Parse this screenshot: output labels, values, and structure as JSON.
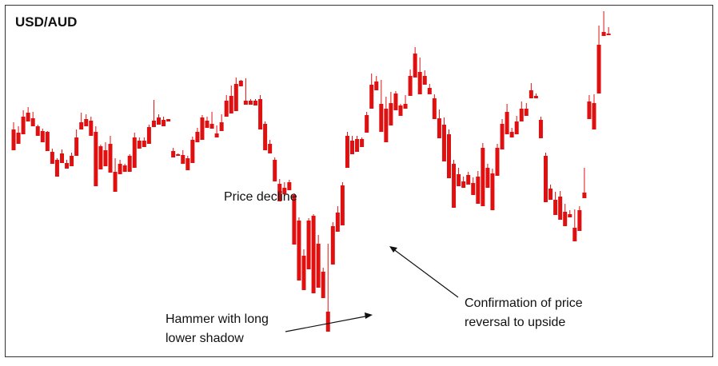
{
  "chart_data": {
    "type": "candlestick",
    "title": "USD/AUD",
    "xlabel": "",
    "ylabel": "",
    "grid": false,
    "colors": {
      "up": "#2e7d12",
      "down": "#e01010",
      "text": "#111111",
      "border": "#333333"
    },
    "ylim": [
      0,
      453
    ],
    "candles": [
      [
        162,
        153,
        180,
        188
      ],
      [
        166,
        158,
        177,
        180
      ],
      [
        146,
        138,
        157,
        168
      ],
      [
        141,
        134,
        150,
        152
      ],
      [
        148,
        140,
        157,
        158
      ],
      [
        158,
        156,
        168,
        170
      ],
      [
        164,
        161,
        172,
        178
      ],
      [
        165,
        164,
        185,
        189
      ],
      [
        190,
        186,
        200,
        205
      ],
      [
        200,
        198,
        219,
        221
      ],
      [
        192,
        187,
        200,
        204
      ],
      [
        204,
        200,
        205,
        211
      ],
      [
        195,
        191,
        205,
        208
      ],
      [
        172,
        162,
        195,
        195
      ],
      [
        153,
        141,
        160,
        162
      ],
      [
        149,
        143,
        153,
        158
      ],
      [
        151,
        146,
        167,
        170
      ],
      [
        165,
        158,
        200,
        233
      ],
      [
        183,
        181,
        202,
        212
      ],
      [
        188,
        178,
        205,
        208
      ],
      [
        180,
        170,
        190,
        216
      ],
      [
        215,
        198,
        230,
        240
      ],
      [
        205,
        200,
        215,
        218
      ],
      [
        207,
        205,
        212,
        215
      ],
      [
        195,
        193,
        212,
        215
      ],
      [
        172,
        166,
        200,
        210
      ],
      [
        176,
        172,
        182,
        186
      ],
      [
        176,
        172,
        180,
        184
      ],
      [
        159,
        156,
        178,
        180
      ],
      [
        151,
        125,
        157,
        159
      ],
      [
        147,
        143,
        152,
        156
      ],
      [
        150,
        146,
        155,
        158
      ],
      [
        149,
        149,
        151,
        152
      ],
      [
        189,
        185,
        193,
        197
      ],
      [
        193,
        192,
        195,
        195
      ],
      [
        194,
        188,
        202,
        205
      ],
      [
        198,
        195,
        210,
        213
      ],
      [
        175,
        171,
        201,
        204
      ],
      [
        165,
        160,
        177,
        178
      ],
      [
        147,
        144,
        172,
        175
      ],
      [
        151,
        146,
        158,
        160
      ],
      [
        155,
        140,
        158,
        161
      ],
      [
        167,
        157,
        170,
        172
      ],
      [
        153,
        143,
        158,
        164
      ],
      [
        126,
        119,
        143,
        146
      ],
      [
        120,
        107,
        137,
        142
      ],
      [
        105,
        97,
        136,
        139
      ],
      [
        101,
        100,
        104,
        108
      ],
      [
        126,
        98,
        128,
        131
      ],
      [
        126,
        124,
        129,
        131
      ],
      [
        126,
        124,
        129,
        132
      ],
      [
        124,
        119,
        159,
        162
      ],
      [
        155,
        152,
        185,
        188
      ],
      [
        180,
        175,
        188,
        192
      ],
      [
        200,
        197,
        225,
        227
      ],
      [
        230,
        224,
        250,
        252
      ],
      [
        235,
        228,
        240,
        243
      ],
      [
        228,
        225,
        236,
        238
      ],
      [
        244,
        242,
        304,
        306
      ],
      [
        276,
        272,
        347,
        351
      ],
      [
        320,
        312,
        355,
        363
      ],
      [
        276,
        273,
        333,
        337
      ],
      [
        270,
        268,
        363,
        367
      ],
      [
        305,
        294,
        355,
        360
      ],
      [
        340,
        335,
        363,
        373
      ],
      [
        390,
        305,
        412,
        415
      ],
      [
        283,
        278,
        327,
        331
      ],
      [
        266,
        258,
        288,
        290
      ],
      [
        232,
        228,
        278,
        282
      ],
      [
        170,
        165,
        208,
        210
      ],
      [
        176,
        170,
        190,
        193
      ],
      [
        174,
        170,
        188,
        190
      ],
      [
        174,
        172,
        180,
        184
      ],
      [
        144,
        140,
        163,
        166
      ],
      [
        106,
        92,
        133,
        136
      ],
      [
        102,
        95,
        110,
        113
      ],
      [
        130,
        100,
        160,
        165
      ],
      [
        136,
        121,
        173,
        178
      ],
      [
        129,
        115,
        155,
        157
      ],
      [
        117,
        114,
        135,
        138
      ],
      [
        132,
        130,
        142,
        145
      ],
      [
        130,
        119,
        133,
        136
      ],
      [
        95,
        87,
        116,
        120
      ],
      [
        67,
        59,
        94,
        97
      ],
      [
        90,
        72,
        113,
        118
      ],
      [
        95,
        88,
        103,
        106
      ],
      [
        110,
        105,
        115,
        118
      ],
      [
        123,
        118,
        145,
        149
      ],
      [
        148,
        137,
        170,
        173
      ],
      [
        156,
        147,
        198,
        202
      ],
      [
        168,
        162,
        220,
        223
      ],
      [
        205,
        200,
        257,
        260
      ],
      [
        218,
        210,
        228,
        233
      ],
      [
        227,
        221,
        233,
        235
      ],
      [
        219,
        215,
        227,
        231
      ],
      [
        229,
        222,
        241,
        244
      ],
      [
        221,
        214,
        253,
        255
      ],
      [
        185,
        179,
        255,
        258
      ],
      [
        210,
        205,
        232,
        235
      ],
      [
        217,
        211,
        260,
        263
      ],
      [
        185,
        180,
        218,
        220
      ],
      [
        155,
        149,
        184,
        187
      ],
      [
        140,
        130,
        165,
        168
      ],
      [
        165,
        160,
        170,
        172
      ],
      [
        152,
        145,
        165,
        168
      ],
      [
        136,
        127,
        150,
        152
      ],
      [
        136,
        129,
        142,
        145
      ],
      [
        113,
        104,
        120,
        123
      ],
      [
        120,
        117,
        121,
        123
      ],
      [
        150,
        146,
        170,
        173
      ],
      [
        195,
        191,
        250,
        253
      ],
      [
        236,
        231,
        248,
        250
      ],
      [
        250,
        240,
        265,
        269
      ],
      [
        246,
        239,
        271,
        275
      ],
      [
        265,
        255,
        280,
        283
      ],
      [
        268,
        263,
        270,
        272
      ],
      [
        285,
        262,
        300,
        302
      ],
      [
        263,
        258,
        287,
        289
      ],
      [
        241,
        210,
        245,
        248
      ],
      [
        127,
        119,
        147,
        149
      ],
      [
        129,
        118,
        148,
        162
      ],
      [
        56,
        32,
        113,
        117
      ],
      [
        40,
        14,
        44,
        45
      ],
      [
        42,
        34,
        43,
        44
      ]
    ],
    "annotations": [
      {
        "text": "Price decline"
      },
      {
        "text": "Hammer with long",
        "text2": "lower shadow"
      },
      {
        "text": "Confirmation of price",
        "text2": "reversal to upside"
      }
    ]
  }
}
